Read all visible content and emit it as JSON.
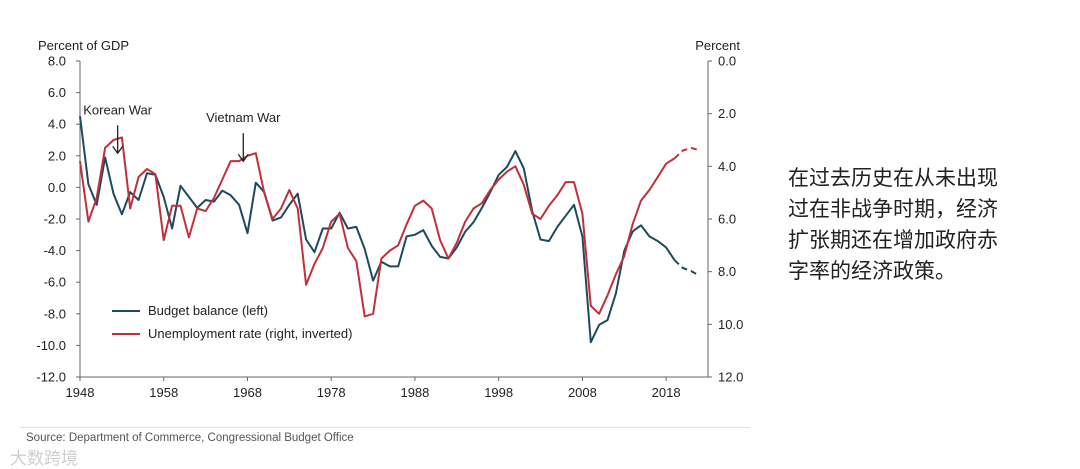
{
  "side_note": {
    "lines": [
      "在过去历史在从未出现",
      "过在非战争时期，经济",
      "扩张期还在增加政府赤",
      "字率的经济政策。"
    ]
  },
  "source": "Source: Department of Commerce, Congressional Budget Office",
  "watermark": "大数跨境",
  "chart_data": {
    "type": "line",
    "left_axis": {
      "label": "Percent of GDP",
      "range": [
        -12,
        8
      ],
      "ticks": [
        "8.0",
        "6.0",
        "4.0",
        "2.0",
        "0.0",
        "-2.0",
        "-4.0",
        "-6.0",
        "-8.0",
        "-10.0",
        "-12.0"
      ]
    },
    "right_axis": {
      "label": "Percent",
      "range": [
        0,
        12
      ],
      "inverted": true,
      "ticks": [
        "0.0",
        "2.0",
        "4.0",
        "6.0",
        "8.0",
        "10.0",
        "12.0"
      ]
    },
    "x_axis": {
      "range": [
        1948,
        2023
      ],
      "ticks": [
        "1948",
        "1958",
        "1968",
        "1978",
        "1988",
        "1998",
        "2008",
        "2018"
      ]
    },
    "grid": false,
    "legend_position": "bottom-left",
    "colors": {
      "budget": "#1e4a5c",
      "unemployment": "#c0303a"
    },
    "annotations": [
      {
        "text": "Korean War",
        "x": 1952.5,
        "y": 4.5
      },
      {
        "text": "Vietnam War",
        "x": 1967.5,
        "y": 4.0
      }
    ],
    "series": [
      {
        "name": "Budget balance (left)",
        "axis": "left",
        "x": [
          1948,
          1949,
          1950,
          1951,
          1952,
          1953,
          1954,
          1955,
          1956,
          1957,
          1958,
          1959,
          1960,
          1961,
          1962,
          1963,
          1964,
          1965,
          1966,
          1967,
          1968,
          1969,
          1970,
          1971,
          1972,
          1973,
          1974,
          1975,
          1976,
          1977,
          1978,
          1979,
          1980,
          1981,
          1982,
          1983,
          1984,
          1985,
          1986,
          1987,
          1988,
          1989,
          1990,
          1991,
          1992,
          1993,
          1994,
          1995,
          1996,
          1997,
          1998,
          1999,
          2000,
          2001,
          2002,
          2003,
          2004,
          2005,
          2006,
          2007,
          2008,
          2009,
          2010,
          2011,
          2012,
          2013,
          2014,
          2015,
          2016,
          2017,
          2018,
          2019
        ],
        "y": [
          4.5,
          0.2,
          -1.1,
          1.9,
          -0.4,
          -1.7,
          -0.3,
          -0.8,
          0.9,
          0.8,
          -0.6,
          -2.6,
          0.1,
          -0.6,
          -1.3,
          -0.8,
          -0.9,
          -0.2,
          -0.5,
          -1.1,
          -2.9,
          0.3,
          -0.3,
          -2.1,
          -1.9,
          -1.1,
          -0.4,
          -3.3,
          -4.1,
          -2.6,
          -2.6,
          -1.6,
          -2.6,
          -2.5,
          -3.9,
          -5.9,
          -4.7,
          -5.0,
          -5.0,
          -3.1,
          -3.0,
          -2.7,
          -3.7,
          -4.4,
          -4.5,
          -3.8,
          -2.8,
          -2.2,
          -1.3,
          -0.3,
          0.8,
          1.3,
          2.3,
          1.2,
          -1.5,
          -3.3,
          -3.4,
          -2.5,
          -1.8,
          -1.1,
          -3.1,
          -9.8,
          -8.7,
          -8.4,
          -6.7,
          -4.0,
          -2.8,
          -2.4,
          -3.1,
          -3.4,
          -3.8,
          -4.6
        ],
        "projected": {
          "x": [
            2019,
            2020,
            2021,
            2022
          ],
          "y": [
            -4.6,
            -5.1,
            -5.3,
            -5.6
          ]
        }
      },
      {
        "name": "Unemployment rate (right, inverted)",
        "axis": "right",
        "x": [
          1948,
          1949,
          1950,
          1951,
          1952,
          1953,
          1954,
          1955,
          1956,
          1957,
          1958,
          1959,
          1960,
          1961,
          1962,
          1963,
          1964,
          1965,
          1966,
          1967,
          1968,
          1969,
          1970,
          1971,
          1972,
          1973,
          1974,
          1975,
          1976,
          1977,
          1978,
          1979,
          1980,
          1981,
          1982,
          1983,
          1984,
          1985,
          1986,
          1987,
          1988,
          1989,
          1990,
          1991,
          1992,
          1993,
          1994,
          1995,
          1996,
          1997,
          1998,
          1999,
          2000,
          2001,
          2002,
          2003,
          2004,
          2005,
          2006,
          2007,
          2008,
          2009,
          2010,
          2011,
          2012,
          2013,
          2014,
          2015,
          2016,
          2017,
          2018,
          2019
        ],
        "y": [
          3.8,
          6.1,
          5.2,
          3.3,
          3.0,
          2.9,
          5.6,
          4.4,
          4.1,
          4.3,
          6.8,
          5.5,
          5.5,
          6.7,
          5.6,
          5.7,
          5.2,
          4.5,
          3.8,
          3.8,
          3.6,
          3.5,
          5.0,
          6.0,
          5.6,
          4.9,
          5.6,
          8.5,
          7.7,
          7.1,
          6.1,
          5.8,
          7.1,
          7.6,
          9.7,
          9.6,
          7.5,
          7.2,
          7.0,
          6.2,
          5.5,
          5.3,
          5.6,
          6.8,
          7.5,
          6.9,
          6.1,
          5.6,
          5.4,
          4.9,
          4.5,
          4.2,
          4.0,
          4.7,
          5.8,
          6.0,
          5.5,
          5.1,
          4.6,
          4.6,
          5.8,
          9.3,
          9.6,
          8.9,
          8.1,
          7.4,
          6.2,
          5.3,
          4.9,
          4.4,
          3.9,
          3.7
        ],
        "projected": {
          "x": [
            2019,
            2020,
            2021,
            2022
          ],
          "y": [
            3.7,
            3.4,
            3.3,
            3.4
          ]
        }
      }
    ]
  }
}
